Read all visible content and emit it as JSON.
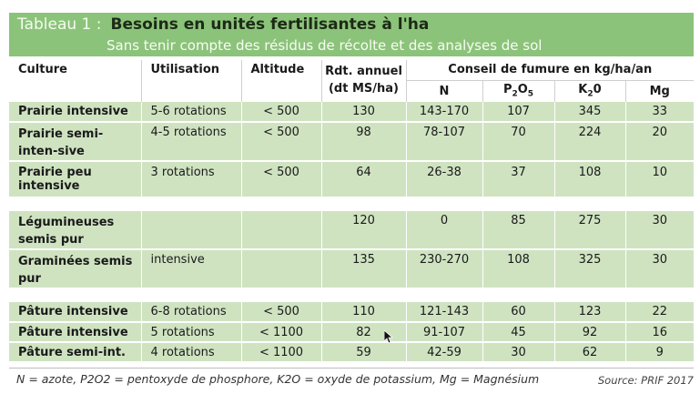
{
  "header": {
    "label": "Tableau 1 :",
    "title": "Besoins en unités fertilisantes à l'ha",
    "subtitle": "Sans tenir compte des résidus de récolte et des analyses de sol"
  },
  "columns": {
    "culture": "Culture",
    "utilisation": "Utilisation",
    "altitude": "Altitude",
    "rdt_line1": "Rdt. annuel",
    "rdt_line2": "(dt MS/ha)",
    "conseil": "Conseil de fumure en kg/ha/an",
    "n": "N",
    "p_main": "P",
    "p_sub1": "2",
    "p_mid": "O",
    "p_sub2": "5",
    "k_main": "K",
    "k_sub": "2",
    "k_end": "0",
    "mg": "Mg"
  },
  "groups": [
    {
      "rows": [
        {
          "culture": "Prairie intensive",
          "utilisation": "5-6 rotations",
          "altitude": "< 500",
          "rdt": "130",
          "n": "143-170",
          "p": "107",
          "k": "345",
          "mg": "33"
        },
        {
          "culture": "Prairie semi-inten-sive",
          "utilisation": "4-5 rotations",
          "altitude": "< 500",
          "rdt": "98",
          "n": "78-107",
          "p": "70",
          "k": "224",
          "mg": "20"
        },
        {
          "culture": "Prairie peu intensive",
          "utilisation": "3 rotations",
          "altitude": "< 500",
          "rdt": "64",
          "n": "26-38",
          "p": "37",
          "k": "108",
          "mg": "10"
        }
      ]
    },
    {
      "rows": [
        {
          "culture": "Légumineuses semis pur",
          "utilisation": "",
          "altitude": "",
          "rdt": "120",
          "n": "0",
          "p": "85",
          "k": "275",
          "mg": "30"
        },
        {
          "culture": "Graminées semis pur",
          "utilisation": "intensive",
          "altitude": "",
          "rdt": "135",
          "n": "230-270",
          "p": "108",
          "k": "325",
          "mg": "30"
        }
      ]
    },
    {
      "rows": [
        {
          "culture": "Pâture intensive",
          "utilisation": "6-8 rotations",
          "altitude": "< 500",
          "rdt": "110",
          "n": "121-143",
          "p": "60",
          "k": "123",
          "mg": "22"
        },
        {
          "culture": "Pâture intensive",
          "utilisation": "5 rotations",
          "altitude": "< 1100",
          "rdt": "82",
          "n": "91-107",
          "p": "45",
          "k": "92",
          "mg": "16"
        },
        {
          "culture": "Pâture semi-int.",
          "utilisation": "4 rotations",
          "altitude": "< 1100",
          "rdt": "59",
          "n": "42-59",
          "p": "30",
          "k": "62",
          "mg": "9"
        }
      ]
    }
  ],
  "footnote": "N = azote, P2O2 = pentoxyde de phosphore, K2O = oxyde de potassium, Mg = Magnésium",
  "source": "Source: PRIF 2017"
}
